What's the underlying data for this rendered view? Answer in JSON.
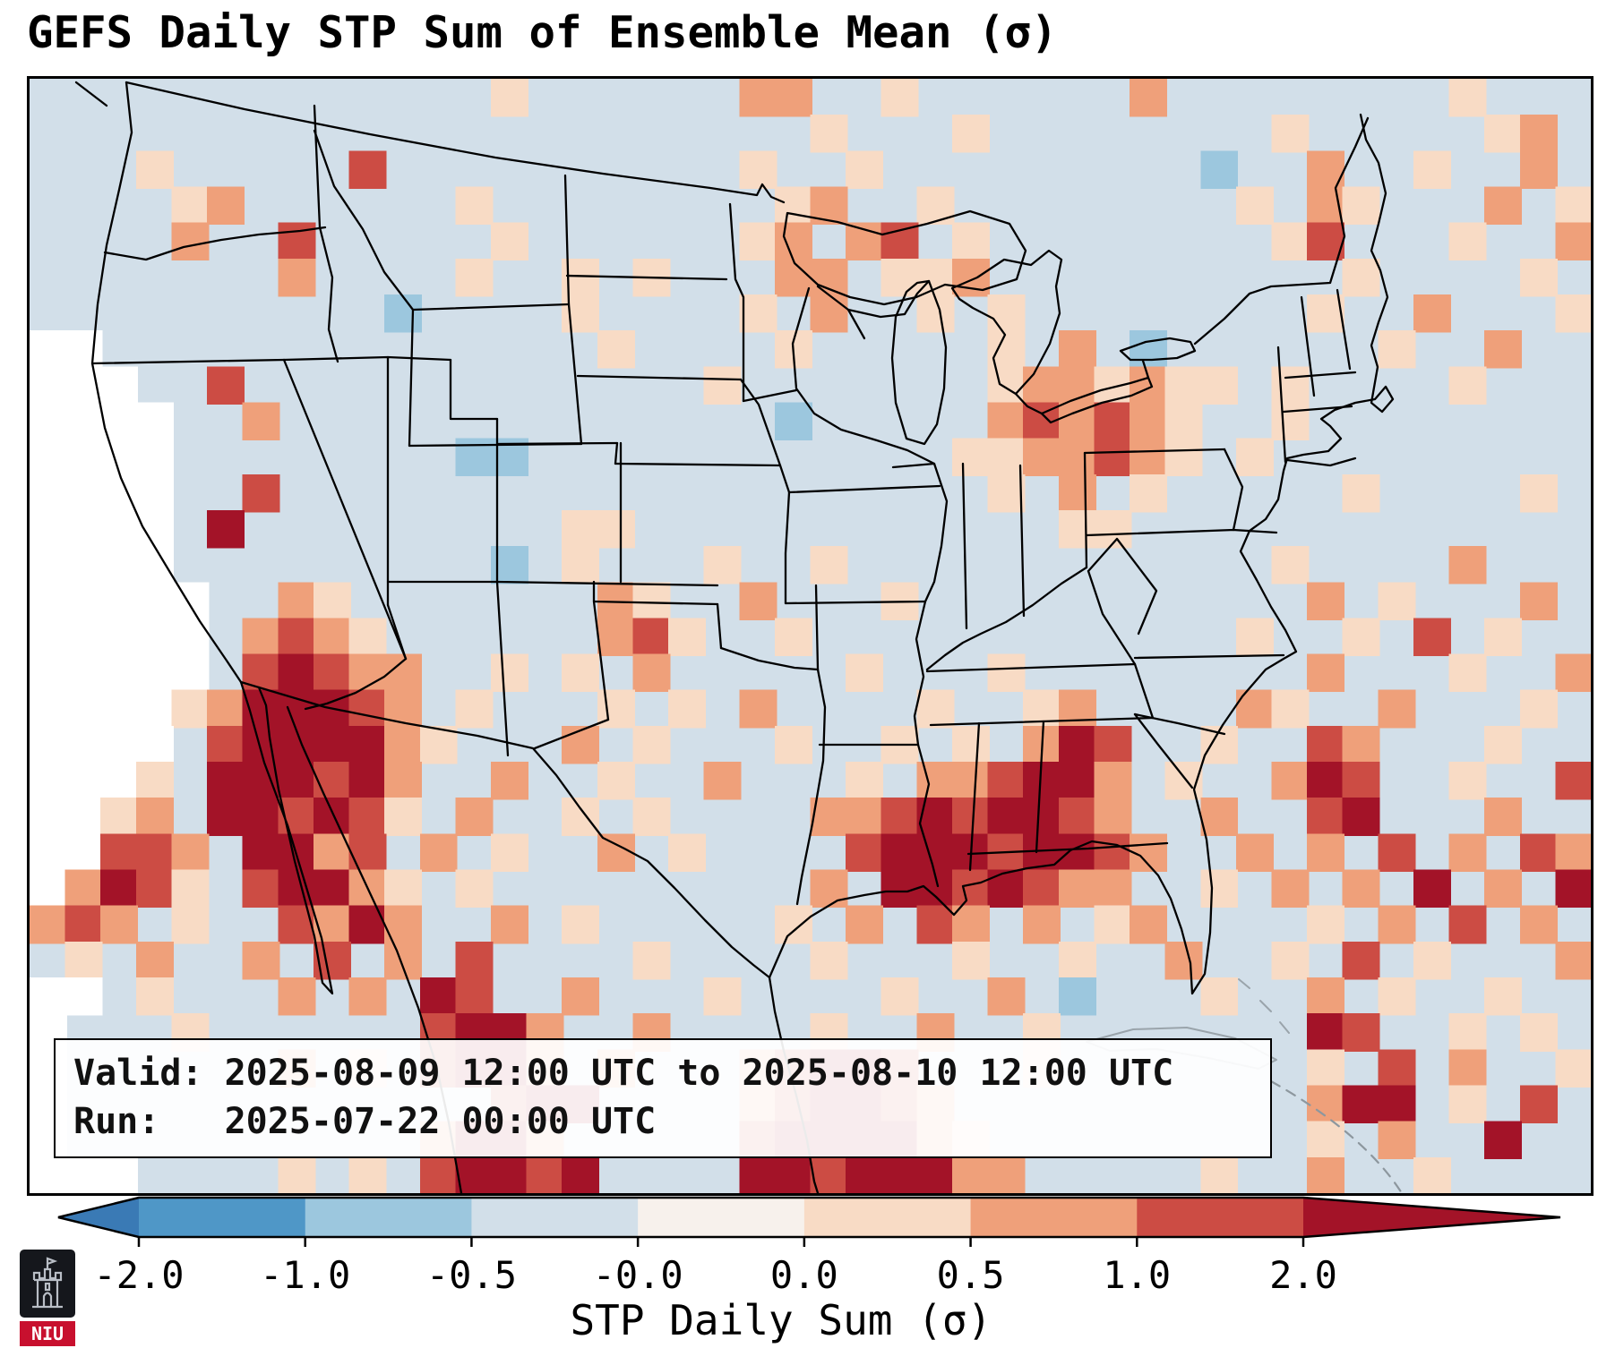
{
  "title": "GEFS Daily STP Sum of Ensemble Mean (σ)",
  "info_box": {
    "line1": "Valid: 2025-08-09 12:00 UTC to 2025-08-10 12:00 UTC",
    "line2": "Run:   2025-07-22 00:00 UTC"
  },
  "colorbar": {
    "label": "STP Daily Sum (σ)",
    "ticks": [
      "-2.0",
      "-1.0",
      "-0.5",
      "-0.0",
      "0.0",
      "0.5",
      "1.0",
      "2.0"
    ],
    "extend_left_color": "#3a7ab5",
    "extend_right_color": "#a31328",
    "segment_colors": [
      "#4f97c7",
      "#9cc7de",
      "#d2dfe9",
      "#f7f1ec",
      "#f8dbc5",
      "#efa07a",
      "#cc4c44"
    ]
  },
  "logo": {
    "text": "NIU",
    "shield_bg": "#15171c",
    "band_color": "#c8102e"
  },
  "chart_data": {
    "type": "heatmap",
    "title": "GEFS Daily STP Sum of Ensemble Mean (σ)",
    "variable": "STP Daily Sum (σ)",
    "valid": "2025-08-09 12:00 UTC to 2025-08-10 12:00 UTC",
    "run": "2025-07-22 00:00 UTC",
    "value_bins": [
      -2.0,
      -1.0,
      -0.5,
      -0.0,
      0.0,
      0.5,
      1.0,
      2.0
    ],
    "colormap": "RdBu_r discrete, extend both",
    "legend_position": "bottom",
    "region": "Continental United States with northern Mexico, Gulf of Mexico and western Atlantic",
    "palette": {
      ".": "none",
      "w": "#ffffff",
      "b": "#9cc7de",
      "B": "#5a9dc8",
      "1": "#f8dbc5",
      "2": "#efa07a",
      "3": "#cc4c44",
      "4": "#a31328"
    },
    "cell_value_legend": {
      ".": "background / ~ -0.5 to -0.0 σ (pale blue)",
      "w": "no data (white mask, Pacific & coastal)",
      "b": "-1.0 to -0.5 σ",
      "B": "-2.0 to -1.0 σ",
      "1": "0.0 to 0.5 σ",
      "2": "0.5 to 1.0 σ",
      "3": "1.0 to 2.0 σ",
      "4": "> 2.0 σ"
    },
    "grid": {
      "cols": 44,
      "rows": 31,
      "rows_encoded": [
        ".............1......22..1......2........1...",
        "......................1...1........1.....12.",
        "...1.....3..........1..1.........b..2..1..2.",
        "....12......1........12..1........1.21...2.1",
        "....2..3.....1......12.23.1........13...1..2",
        ".......2....1..1.1...22.112..........1....1.",
        "..........b....1....1.2..1.1........1..2...1",
        "ww..............1....1.....1.2.b......1..2..",
        "www..3.............1.......1221211.1....1...",
        "wwww..2..............b.....232321..1........",
        "wwww........bb............1122321.1.........",
        "wwww..3....................1.2.1.....1....1.",
        "wwww.4.........11............11.............",
        "wwww.........b.1...1..1............1....2...",
        "wwwww..21.......21..2...1...........2.1...2.",
        "wwwww.2321......231..1............1..1.3.1..",
        "wwwww.34322..1.1.2.....1...1........2...1..2",
        "wwww1244432.1...1.1.2....1..12....21..2...1.",
        "wwww.3444421...2.1...1..1.1.243..1..32...1..",
        "www1.444342..2..1..2...1.223442.1..243..1..3",
        "ww12.443431.2..1.1....223434432..2..34...2..",
        "ww332.4423.2.1..2.1....344434432..2.2.3.2.32",
        "w2431.34421.1.........2.4434322..1.2.2.4.2.4",
        "232.1..3242..2.1.....1.2.32.2.12....1.2.3.2.",
        ".1.2..2.3.2.3....1....1...1..1..2..1.3.1...2",
        "ww.1...2.2.43..2...1....1..2.b...1..2.1..1..",
        "w...1......3442..2....1..2..1.......43..1.1.",
        "w......2.1.3442.2...23443...1.......1.3.2..1",
        "w............344....234432..........244.1.3.",
        "w..........2442.....3444421.........1.2..4..",
        "www....1.1.34434....44344422.....1..2..1...."
      ]
    }
  }
}
